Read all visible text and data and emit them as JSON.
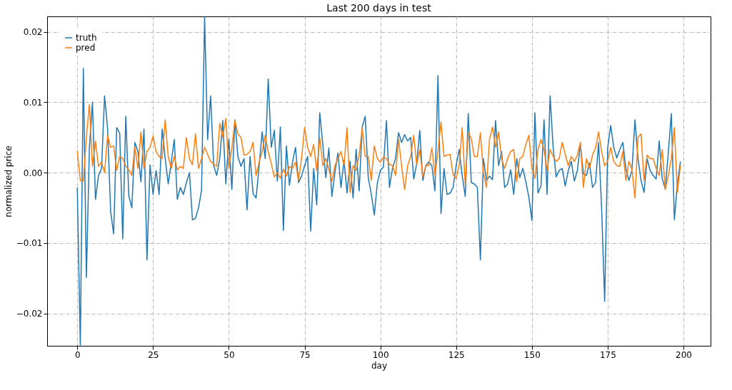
{
  "chart_data": {
    "type": "line",
    "title": "Last 200 days in test",
    "xlabel": "day",
    "ylabel": "normalized price",
    "x": [
      0,
      1,
      2,
      3,
      4,
      5,
      6,
      7,
      8,
      9,
      10,
      11,
      12,
      13,
      14,
      15,
      16,
      17,
      18,
      19,
      20,
      21,
      22,
      23,
      24,
      25,
      26,
      27,
      28,
      29,
      30,
      31,
      32,
      33,
      34,
      35,
      36,
      37,
      38,
      39,
      40,
      41,
      42,
      43,
      44,
      45,
      46,
      47,
      48,
      49,
      50,
      51,
      52,
      53,
      54,
      55,
      56,
      57,
      58,
      59,
      60,
      61,
      62,
      63,
      64,
      65,
      66,
      67,
      68,
      69,
      70,
      71,
      72,
      73,
      74,
      75,
      76,
      77,
      78,
      79,
      80,
      81,
      82,
      83,
      84,
      85,
      86,
      87,
      88,
      89,
      90,
      91,
      92,
      93,
      94,
      95,
      96,
      97,
      98,
      99,
      100,
      101,
      102,
      103,
      104,
      105,
      106,
      107,
      108,
      109,
      110,
      111,
      112,
      113,
      114,
      115,
      116,
      117,
      118,
      119,
      120,
      121,
      122,
      123,
      124,
      125,
      126,
      127,
      128,
      129,
      130,
      131,
      132,
      133,
      134,
      135,
      136,
      137,
      138,
      139,
      140,
      141,
      142,
      143,
      144,
      145,
      146,
      147,
      148,
      149,
      150,
      151,
      152,
      153,
      154,
      155,
      156,
      157,
      158,
      159,
      160,
      161,
      162,
      163,
      164,
      165,
      166,
      167,
      168,
      169,
      170,
      171,
      172,
      173,
      174,
      175,
      176,
      177,
      178,
      179,
      180,
      181,
      182,
      183,
      184,
      185,
      186,
      187,
      188,
      189,
      190,
      191,
      192,
      193,
      194,
      195,
      196,
      197,
      198,
      199
    ],
    "series": [
      {
        "name": "truth",
        "color": "#1f77b4",
        "values": [
          -0.0021,
          -0.0245,
          0.0148,
          -0.0149,
          0.0036,
          0.01,
          -0.0038,
          -0.0004,
          0.0006,
          0.0109,
          0.0063,
          -0.0055,
          -0.0087,
          0.0064,
          0.0056,
          -0.0094,
          0.008,
          -0.0033,
          -0.005,
          0.0043,
          0.003,
          -0.0013,
          0.0062,
          -0.0124,
          0.0011,
          -0.0031,
          0.0003,
          -0.0031,
          0.0062,
          0.002,
          -0.0016,
          0.0015,
          0.0047,
          -0.0038,
          -0.0021,
          -0.0031,
          -0.0014,
          0.0,
          -0.0067,
          -0.0065,
          -0.005,
          -0.0025,
          0.0221,
          0.0047,
          0.0109,
          0.001,
          -0.0004,
          0.002,
          0.0074,
          -0.0016,
          0.0048,
          -0.0024,
          0.0075,
          0.0023,
          0.0009,
          0.002,
          -0.0053,
          0.0023,
          -0.003,
          -0.0036,
          0.001,
          0.0058,
          0.002,
          0.0133,
          0.0036,
          0.006,
          -0.0012,
          0.0065,
          -0.0082,
          0.0038,
          -0.0018,
          0.0015,
          0.0036,
          -0.0014,
          -0.0005,
          0.001,
          0.0023,
          -0.0083,
          0.0006,
          -0.0046,
          0.0085,
          0.004,
          -0.0007,
          0.0035,
          -0.0034,
          0.0,
          0.0028,
          -0.0021,
          0.0018,
          -0.0029,
          0.0016,
          -0.0036,
          0.0033,
          -0.0026,
          0.0065,
          0.008,
          -0.0007,
          -0.003,
          -0.006,
          -0.0015,
          0.0003,
          0.0008,
          0.0074,
          -0.0021,
          0.0006,
          0.002,
          0.0057,
          0.0043,
          0.0054,
          0.0045,
          0.005,
          -0.0009,
          0.0013,
          0.006,
          -0.0011,
          0.001,
          0.0015,
          0.001,
          -0.0026,
          0.0138,
          -0.0058,
          0.0006,
          -0.0031,
          -0.0029,
          -0.0021,
          0.001,
          0.0033,
          -0.0004,
          -0.0034,
          0.0084,
          -0.0014,
          -0.0016,
          -0.0021,
          -0.0124,
          0.002,
          -0.0011,
          -0.0005,
          -0.001,
          0.0074,
          0.001,
          0.003,
          -0.0021,
          -0.0016,
          0.0004,
          -0.0031,
          0.002,
          -0.0007,
          0.0006,
          -0.0013,
          -0.0035,
          -0.0068,
          0.0085,
          -0.0029,
          -0.0019,
          0.0075,
          -0.0031,
          0.0109,
          0.0036,
          -0.0006,
          0.0003,
          0.0006,
          -0.0019,
          0.0003,
          0.0016,
          -0.0012,
          0.0003,
          0.004,
          -0.0002,
          -0.0004,
          0.0014,
          -0.0021,
          -0.0014,
          0.0043,
          -0.005,
          -0.0183,
          0.0035,
          0.0067,
          0.0036,
          0.0021,
          0.0033,
          0.0043,
          0.0006,
          -0.0011,
          0.0003,
          0.0075,
          0.002,
          -0.0011,
          -0.0028,
          0.002,
          0.0003,
          -0.0004,
          -0.0009,
          0.0045,
          -0.0009,
          -0.0023,
          0.0028,
          0.0084,
          -0.0067,
          -0.0016,
          0.0016
        ]
      },
      {
        "name": "pred",
        "color": "#ff7f0e",
        "values": [
          0.0031,
          -0.0011,
          -0.0012,
          0.005,
          0.0097,
          0.0009,
          0.0045,
          0.0009,
          0.0015,
          0.0,
          0.0053,
          0.0036,
          0.0038,
          0.0003,
          0.0023,
          0.002,
          0.0009,
          0.0004,
          -0.0004,
          0.0036,
          0.0006,
          0.0058,
          0.0006,
          0.003,
          0.0036,
          0.0052,
          0.003,
          0.0023,
          0.002,
          0.0075,
          0.0023,
          0.0006,
          0.0023,
          0.0004,
          0.0009,
          0.0006,
          0.005,
          0.002,
          0.0011,
          0.0055,
          0.0006,
          0.002,
          0.0036,
          0.0026,
          0.0016,
          0.0012,
          0.0009,
          0.007,
          0.005,
          0.0077,
          0.0006,
          0.0035,
          0.0074,
          0.0055,
          0.005,
          0.0025,
          0.0026,
          0.003,
          0.0043,
          -0.0004,
          0.0015,
          0.003,
          0.0053,
          0.003,
          0.0013,
          -0.0006,
          0.0,
          -0.0008,
          0.0005,
          -0.0005,
          0.0009,
          0.0006,
          0.0015,
          -0.0011,
          0.002,
          0.0064,
          0.0036,
          0.0023,
          0.004,
          0.0003,
          0.005,
          0.001,
          0.002,
          0.0005,
          -0.0012,
          0.001,
          0.002,
          0.003,
          0.001,
          0.0064,
          -0.0028,
          0.001,
          0.0003,
          0.0025,
          0.0064,
          0.0023,
          0.0023,
          -0.0011,
          0.0038,
          0.002,
          0.0015,
          0.0022,
          0.002,
          0.0012,
          0.001,
          -0.0004,
          0.0048,
          0.001,
          -0.0024,
          0.001,
          0.0023,
          0.0053,
          0.0011,
          0.0033,
          -0.0006,
          0.001,
          0.001,
          0.0035,
          -0.0004,
          0.003,
          0.0072,
          0.0023,
          0.0025,
          0.0026,
          -0.0003,
          -0.0008,
          0.001,
          0.0064,
          -0.0017,
          0.0058,
          0.0048,
          0.0023,
          0.0023,
          0.0057,
          0.0,
          -0.0021,
          0.0047,
          0.0065,
          0.0036,
          0.0058,
          0.002,
          0.0006,
          0.002,
          0.003,
          0.0033,
          -0.0013,
          0.002,
          0.0023,
          0.004,
          0.0053,
          0.0006,
          -0.0008,
          0.0033,
          0.0047,
          0.0033,
          0.0003,
          0.0033,
          0.0023,
          0.0016,
          0.002,
          0.0043,
          0.0026,
          0.001,
          0.0023,
          0.0016,
          0.0025,
          0.0043,
          -0.0021,
          0.002,
          0.0006,
          0.0025,
          0.0035,
          0.0058,
          0.003,
          0.001,
          0.0016,
          0.0036,
          0.0016,
          0.001,
          0.0009,
          0.003,
          -0.0011,
          0.0016,
          0.0005,
          -0.0036,
          0.005,
          0.0055,
          -0.0011,
          0.0025,
          0.002,
          0.002,
          0.0006,
          -0.0004,
          0.0033,
          -0.0024,
          -0.0004,
          0.002,
          0.0064,
          -0.0028,
          0.001
        ]
      }
    ],
    "xlim": [
      -9.95,
      208.95
    ],
    "xticks": [
      0,
      25,
      50,
      75,
      100,
      125,
      150,
      175,
      200
    ],
    "ylim": [
      -0.0246,
      0.0222
    ],
    "yticks": [
      {
        "value": -0.02,
        "label": "−0.02"
      },
      {
        "value": -0.01,
        "label": "−0.01"
      },
      {
        "value": 0,
        "label": "0.00"
      },
      {
        "value": 0.01,
        "label": "0.01"
      },
      {
        "value": 0.02,
        "label": "0.02"
      }
    ],
    "grid": true,
    "legend": "top left",
    "line_style": "solid",
    "marker": "none"
  }
}
